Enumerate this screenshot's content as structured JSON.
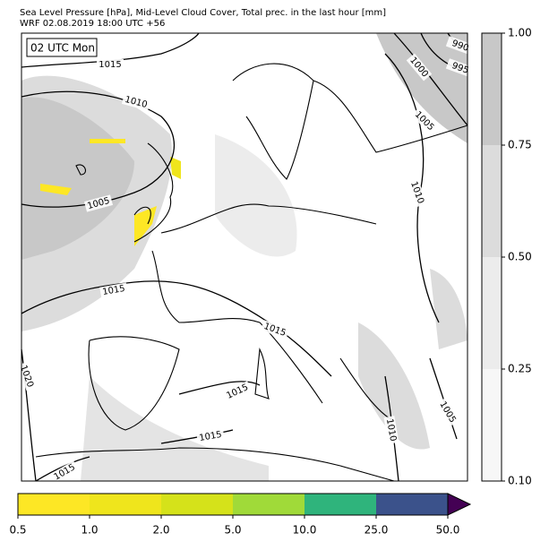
{
  "header": {
    "title": "Sea Level Pressure [hPa], Mid-Level Cloud Cover, Total prec. in the last hour [mm]",
    "subtitle": "WRF 02.08.2019 18:00 UTC +56"
  },
  "map": {
    "time_label": "02 UTC Mon",
    "isobar_labels": [
      "1015",
      "1010",
      "1005",
      "1015",
      "1015",
      "1015",
      "1015",
      "1015",
      "1020",
      "1010",
      "1005",
      "1000",
      "995",
      "990",
      "1010",
      "1005"
    ]
  },
  "cloud_colorbar": {
    "ticks": [
      {
        "value": 0.1,
        "label": "0.10"
      },
      {
        "value": 0.25,
        "label": "0.25"
      },
      {
        "value": 0.5,
        "label": "0.50"
      },
      {
        "value": 0.75,
        "label": "0.75"
      },
      {
        "value": 1.0,
        "label": "1.00"
      }
    ],
    "colors": [
      "#f7f7f7",
      "#ececec",
      "#dcdcdc",
      "#c8c8c8"
    ]
  },
  "precip_colorbar": {
    "ticks": [
      0.5,
      {
        "value": 1.0,
        "label": "1.0"
      },
      {
        "value": 2.0,
        "label": "2.0"
      },
      {
        "value": 5.0,
        "label": "5.0"
      },
      {
        "value": 10.0,
        "label": "10.0"
      },
      {
        "value": 25.0,
        "label": "25.0"
      },
      {
        "value": 50.0,
        "label": "50.0"
      }
    ],
    "colors": [
      "#fde725",
      "#efe51c",
      "#d5e21a",
      "#a0da39",
      "#2fb47c",
      "#3b528b"
    ],
    "extend_color": "#440154"
  }
}
